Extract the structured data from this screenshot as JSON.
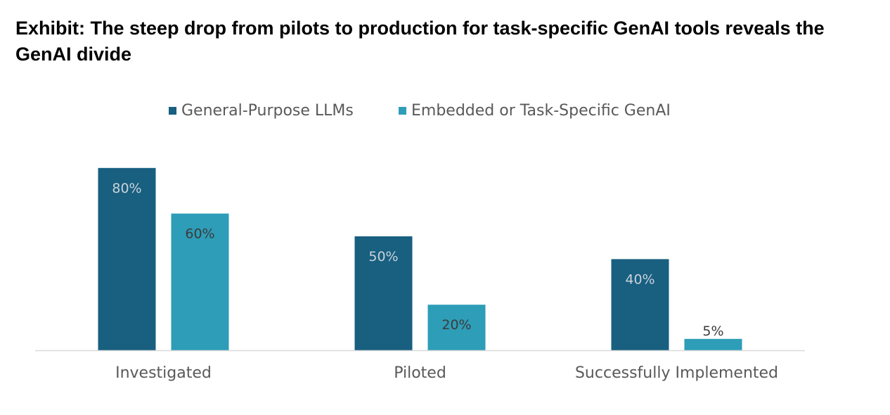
{
  "chart_data": {
    "type": "bar",
    "title": "Exhibit: The steep drop from pilots to production for task-specific GenAI tools reveals the GenAI divide",
    "categories": [
      "Investigated",
      "Piloted",
      "Successfully Implemented"
    ],
    "series": [
      {
        "name": "General-Purpose LLMs",
        "values": [
          80,
          50,
          40
        ],
        "labels": [
          "80%",
          "50%",
          "40%"
        ],
        "color": "#185f80",
        "label_color": "#c9d3da"
      },
      {
        "name": "Embedded or Task-Specific GenAI",
        "values": [
          60,
          20,
          5
        ],
        "labels": [
          "60%",
          "20%",
          "5%"
        ],
        "color": "#2e9db8",
        "label_color": "#3b3b3b"
      }
    ],
    "ylim": [
      0,
      100
    ],
    "grid": false,
    "legend_position": "top"
  }
}
